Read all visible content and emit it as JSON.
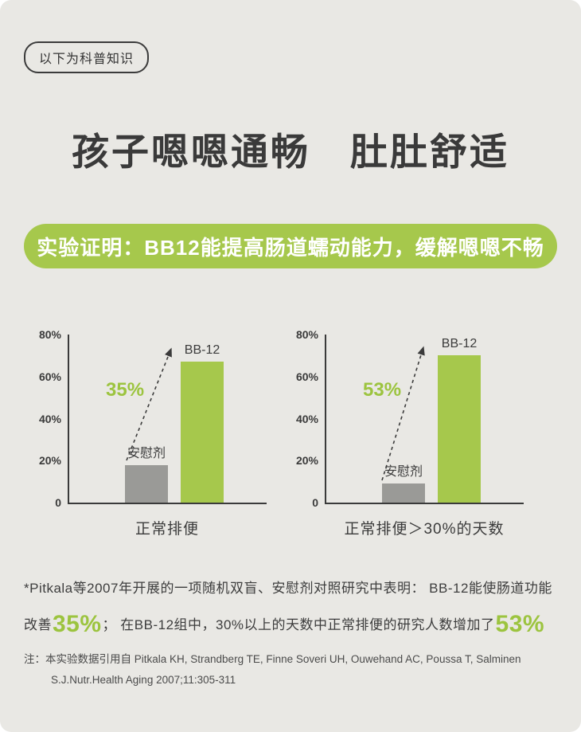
{
  "page": {
    "badge": "以下为科普知识",
    "title": "孩子嗯嗯通畅　肚肚舒适",
    "banner": "实验证明：BB12能提高肠道蠕动能力，缓解嗯嗯不畅"
  },
  "colors": {
    "background": "#e9e8e4",
    "accent_green": "#a6c84c",
    "annotation_green": "#9cc43f",
    "placebo_gray": "#9a9a97",
    "text_dark": "#3b3b3b"
  },
  "chart_data": [
    {
      "type": "bar",
      "categories": [
        "安慰剂",
        "BB-12"
      ],
      "values": [
        18,
        67
      ],
      "series_colors": [
        "#9a9a97",
        "#a6c84c"
      ],
      "yticks": [
        "0",
        "20%",
        "40%",
        "60%",
        "80%"
      ],
      "ylim": [
        0,
        80
      ],
      "annotation": "35%",
      "xlabel": "正常排便",
      "grid": false,
      "legend": false
    },
    {
      "type": "bar",
      "categories": [
        "安慰剂",
        "BB-12"
      ],
      "values": [
        9,
        70
      ],
      "series_colors": [
        "#9a9a97",
        "#a6c84c"
      ],
      "yticks": [
        "0",
        "20%",
        "40%",
        "60%",
        "80%"
      ],
      "ylim": [
        0,
        80
      ],
      "annotation": "53%",
      "xlabel": "正常排便＞30%的天数",
      "grid": false,
      "legend": false
    }
  ],
  "footnote": {
    "part1": "*Pitkala等2007年开展的一项随机双盲、安慰剂对照研究中表明： BB-12能使肠道功能改善",
    "big1": "35%",
    "part2": "； 在BB-12组中，30%以上的天数中正常排便的研究人数增加了",
    "big2": "53%"
  },
  "reference": {
    "line1": "注：本实验数据引用自 Pitkala KH, Strandberg TE, Finne Soveri UH, Ouwehand AC, Poussa T, Salminen",
    "line2": "S.J.Nutr.Health Aging 2007;11:305-311"
  }
}
